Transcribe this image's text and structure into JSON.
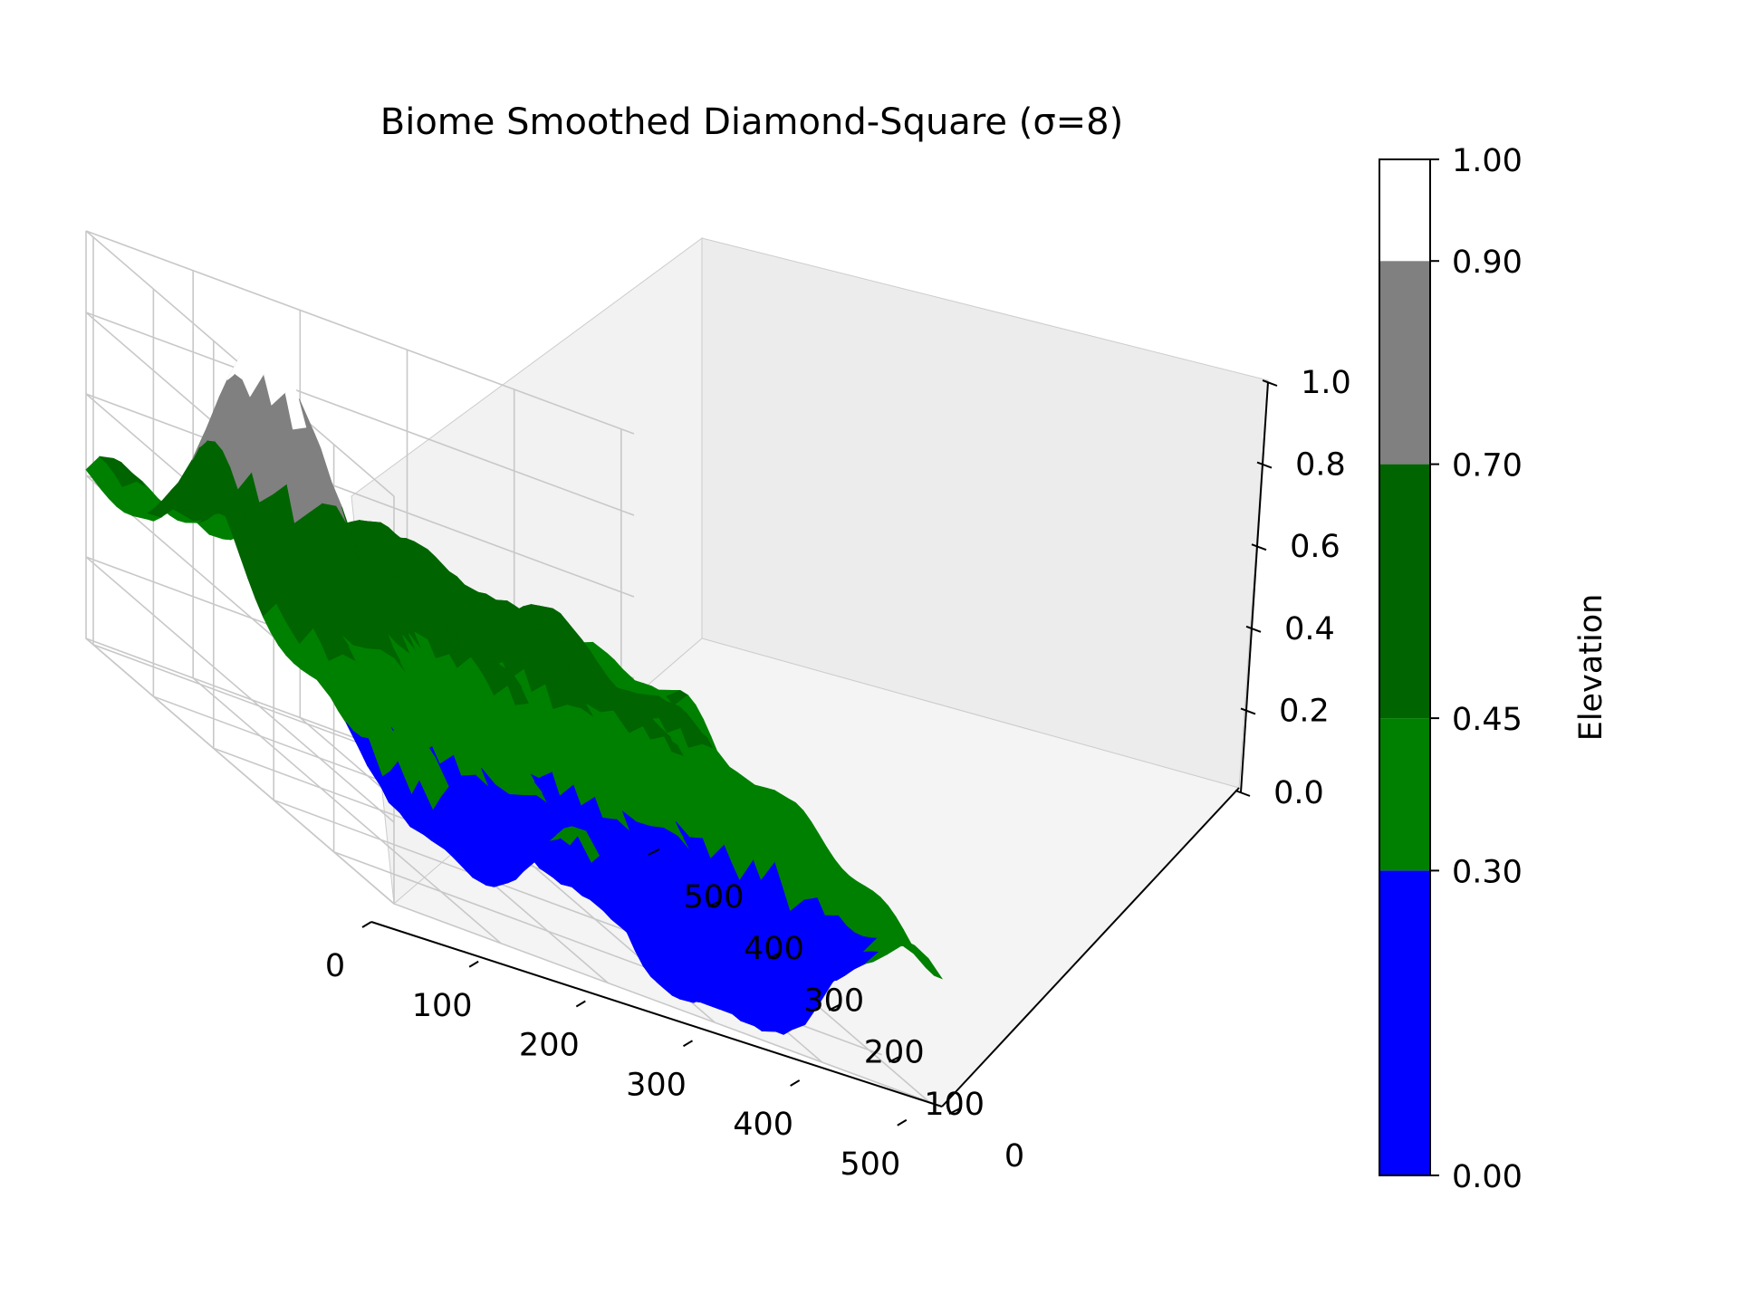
{
  "chart_data": {
    "type": "surface3d",
    "title": "Biome Smoothed Diamond-Square (σ=8)",
    "x_axis": {
      "ticks": [
        0,
        100,
        200,
        300,
        400,
        500
      ],
      "range": [
        0,
        512
      ]
    },
    "y_axis": {
      "ticks": [
        0,
        100,
        200,
        300,
        400,
        500
      ],
      "range": [
        0,
        512
      ]
    },
    "z_axis": {
      "ticks": [
        "0.0",
        "0.2",
        "0.4",
        "0.6",
        "0.8",
        "1.0"
      ],
      "range": [
        0,
        1
      ]
    },
    "grid": true,
    "colorbar": {
      "label": "Elevation",
      "placement": "right",
      "boundaries": [
        "0.00",
        "0.30",
        "0.45",
        "0.70",
        "0.90",
        "1.00"
      ],
      "bands": [
        {
          "from": 0.0,
          "to": 0.3,
          "color": "#0000ff"
        },
        {
          "from": 0.3,
          "to": 0.45,
          "color": "#008000"
        },
        {
          "from": 0.45,
          "to": 0.7,
          "color": "#006400"
        },
        {
          "from": 0.7,
          "to": 0.9,
          "color": "#808080"
        },
        {
          "from": 0.9,
          "to": 1.0,
          "color": "#ffffff"
        }
      ]
    }
  }
}
